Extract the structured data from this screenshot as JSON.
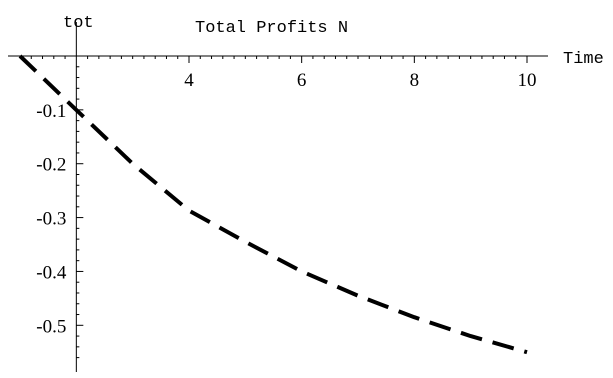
{
  "chart_data": {
    "type": "line",
    "title": "Total  Profits  N",
    "ylabel": "tot",
    "xlabel": "Time",
    "xlim": [
      1,
      10
    ],
    "ylim": [
      -0.57,
      0.0
    ],
    "x_ticks": [
      4,
      6,
      8,
      10
    ],
    "x_tick_labels": [
      "4",
      "6",
      "8",
      "10"
    ],
    "y_ticks": [
      -0.1,
      -0.2,
      -0.3,
      -0.4,
      -0.5
    ],
    "y_tick_labels": [
      "-0.1",
      "-0.2",
      "-0.3",
      "-0.4",
      "-0.5"
    ],
    "grid": false,
    "line_style": "dashed",
    "line_color": "#000000",
    "series": [
      {
        "x": [
          1.0,
          2.0,
          3.0,
          4.0,
          5.0,
          6.0,
          7.0,
          8.0,
          9.0,
          10.0
        ],
        "values": [
          0.0,
          -0.1,
          -0.2,
          -0.287,
          -0.345,
          -0.4,
          -0.445,
          -0.485,
          -0.52,
          -0.55
        ]
      }
    ]
  }
}
